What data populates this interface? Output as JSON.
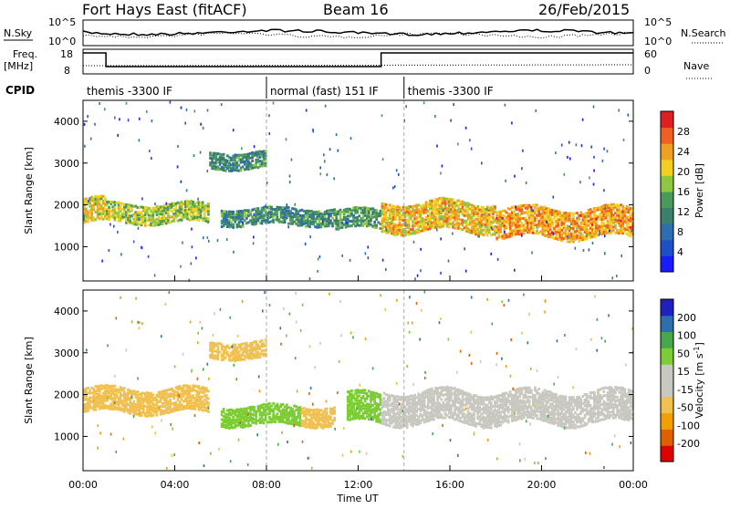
{
  "header": {
    "station": "Fort Hays East (fitACF)",
    "beam": "Beam 16",
    "date": "26/Feb/2015"
  },
  "top_panels": {
    "nsky_label": "N.Sky",
    "nsky_ticks": [
      "10^5",
      "10^0"
    ],
    "nsearch_label": "N.Search",
    "nsearch_ticks": [
      "10^5",
      "10^0"
    ],
    "freq_label": "Freq.",
    "freq_unit": "[MHz]",
    "freq_ticks": [
      "18",
      "8"
    ],
    "nave_label": "Nave",
    "nave_ticks": [
      "60",
      "0"
    ],
    "cpid_label": "CPID",
    "cpid_segments": [
      {
        "label": "themis -3300 IF",
        "start_hour": 0
      },
      {
        "label": "normal (fast) 151 IF",
        "start_hour": 8
      },
      {
        "label": "themis -3300 IF",
        "start_hour": 14
      }
    ]
  },
  "colors": {
    "power_scale": [
      "#1a1aff",
      "#1f4fc8",
      "#2d6db0",
      "#3b7f6c",
      "#4c9a5a",
      "#8fc840",
      "#f0d020",
      "#f0a020",
      "#f06020",
      "#e02020"
    ],
    "velocity_scale": [
      "#e00000",
      "#e06000",
      "#f0a000",
      "#f0c050",
      "#c8c8c0",
      "#c8c8c0",
      "#7ccc34",
      "#46a84a",
      "#2d6db0",
      "#2020c0"
    ]
  },
  "chart_data": [
    {
      "type": "heatmap",
      "name_on_chart": "Power [dB]",
      "ylabel": "Slant Range [km]",
      "yticks": [
        1000,
        2000,
        3000,
        4000
      ],
      "ylim": [
        180,
        4500
      ],
      "xlim": [
        0,
        24
      ],
      "colorbar_label": "Power [dB]",
      "colorbar_ticks": [
        "4",
        "8",
        "12",
        "16",
        "20",
        "24",
        "28"
      ],
      "bands": [
        {
          "x_start": 0,
          "x_end": 1,
          "range_center": 1900,
          "range_width": 600,
          "value": 20
        },
        {
          "x_start": 1,
          "x_end": 5.5,
          "range_center": 1850,
          "range_width": 500,
          "value": 18
        },
        {
          "x_start": 5.5,
          "x_end": 8,
          "range_center": 3100,
          "range_width": 400,
          "value": 12
        },
        {
          "x_start": 6,
          "x_end": 11,
          "range_center": 1750,
          "range_width": 400,
          "value": 12
        },
        {
          "x_start": 11,
          "x_end": 13,
          "range_center": 1700,
          "range_width": 500,
          "value": 14
        },
        {
          "x_start": 13,
          "x_end": 18,
          "range_center": 1750,
          "range_width": 700,
          "value": 22
        },
        {
          "x_start": 18,
          "x_end": 24,
          "range_center": 1600,
          "range_width": 700,
          "value": 24
        }
      ]
    },
    {
      "type": "heatmap",
      "ylabel": "Slant Range [km]",
      "xlabel": "Time UT",
      "xticks": [
        "00:00",
        "04:00",
        "08:00",
        "12:00",
        "16:00",
        "20:00",
        "00:00"
      ],
      "yticks": [
        1000,
        2000,
        3000,
        4000
      ],
      "ylim": [
        180,
        4500
      ],
      "xlim": [
        0,
        24
      ],
      "colorbar_label": "Velocity",
      "colorbar_unit": "[m s",
      "colorbar_unit_exp": "-1",
      "colorbar_unit_end": "]",
      "colorbar_ticks": [
        "-200",
        "-100",
        "-50",
        "-15",
        "15",
        "50",
        "100",
        "200"
      ],
      "bands": [
        {
          "x_start": 0,
          "x_end": 5.5,
          "range_center": 1900,
          "range_width": 600,
          "value": -20
        },
        {
          "x_start": 5.5,
          "x_end": 8,
          "range_center": 3100,
          "range_width": 400,
          "value": -30
        },
        {
          "x_start": 6,
          "x_end": 9.5,
          "range_center": 1550,
          "range_width": 500,
          "value": 40
        },
        {
          "x_start": 9.5,
          "x_end": 11,
          "range_center": 1550,
          "range_width": 500,
          "value": -40
        },
        {
          "x_start": 11.5,
          "x_end": 13,
          "range_center": 1700,
          "range_width": 700,
          "value": 40
        },
        {
          "x_start": 13,
          "x_end": 24,
          "range_center": 1750,
          "range_width": 800,
          "value": 0
        }
      ]
    }
  ]
}
